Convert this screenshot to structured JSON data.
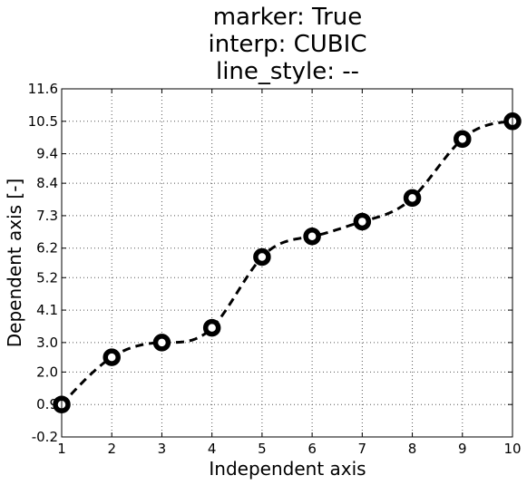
{
  "chart_data": {
    "type": "line",
    "title_lines": [
      "marker: True",
      "interp: CUBIC",
      "line_style: --"
    ],
    "xlabel": "Independent axis",
    "ylabel": "Dependent axis [-]",
    "xlim": [
      1,
      10
    ],
    "ylim": [
      -0.2,
      11.6
    ],
    "x_ticks": [
      "1",
      "2",
      "3",
      "4",
      "5",
      "6",
      "7",
      "8",
      "9",
      "10"
    ],
    "y_ticks": [
      "-0.2",
      "0.9",
      "2.0",
      "3.0",
      "4.1",
      "5.2",
      "6.2",
      "7.3",
      "8.4",
      "9.4",
      "10.5",
      "11.6"
    ],
    "grid": true,
    "marker": true,
    "interp": "CUBIC",
    "line_style": "--",
    "series": [
      {
        "x": [
          1,
          2,
          3,
          4,
          5,
          6,
          7,
          8,
          9,
          10
        ],
        "y": [
          0.9,
          2.5,
          3.0,
          3.5,
          5.9,
          6.6,
          7.1,
          7.9,
          9.9,
          10.5
        ]
      }
    ],
    "colors": {
      "line": "#000000",
      "marker_fill": "#ffffff",
      "marker_edge": "#000000"
    }
  }
}
